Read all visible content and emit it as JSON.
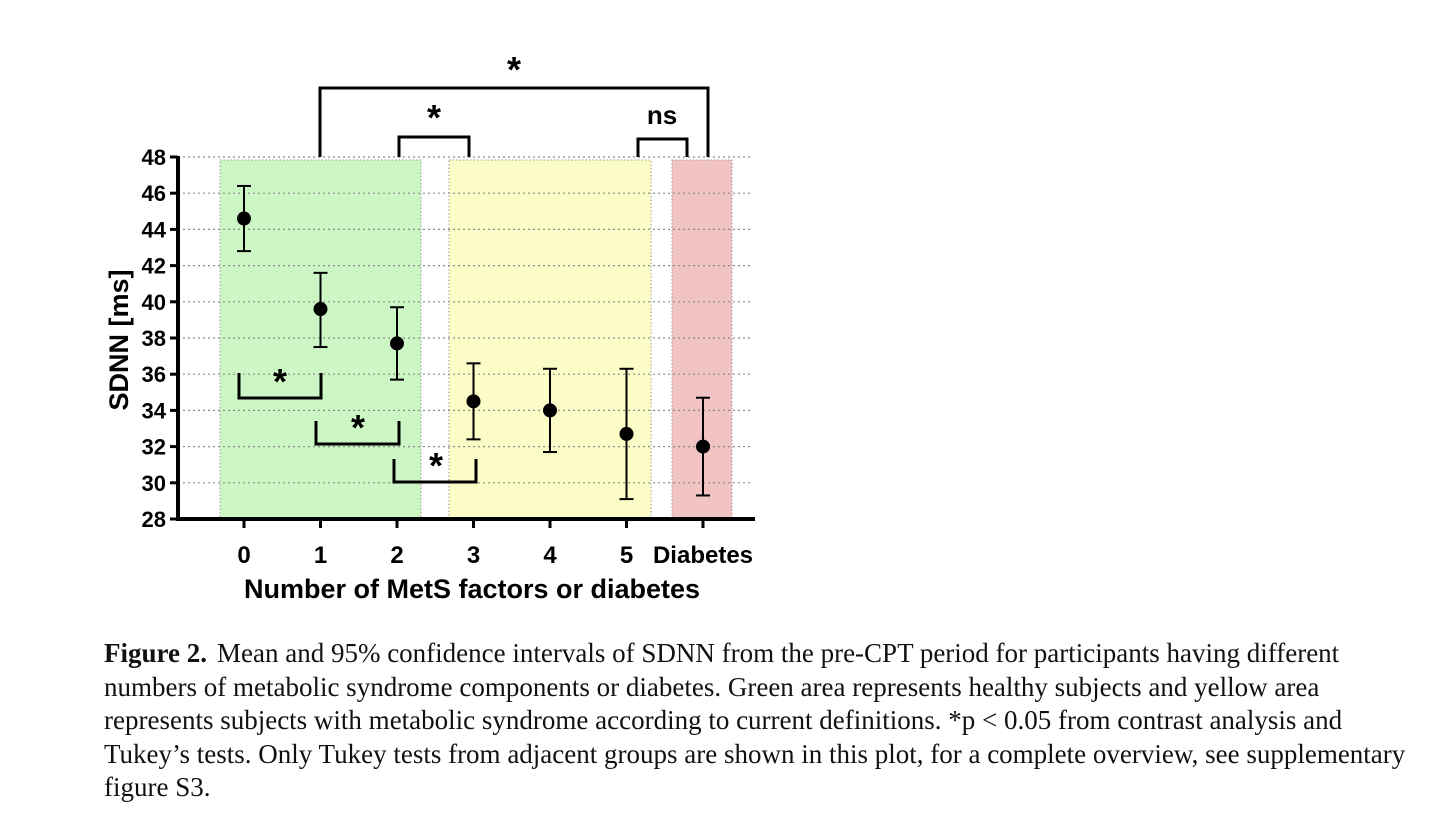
{
  "chart_data": {
    "type": "scatter",
    "categories": [
      "0",
      "1",
      "2",
      "3",
      "4",
      "5",
      "Diabetes"
    ],
    "series": [
      {
        "values": [
          44.6,
          39.6,
          37.7,
          34.5,
          34.0,
          32.7,
          32.0
        ],
        "ci_lower": [
          42.8,
          37.5,
          35.7,
          32.4,
          31.7,
          29.1,
          29.3
        ],
        "ci_upper": [
          46.4,
          41.6,
          39.7,
          36.6,
          36.3,
          36.3,
          34.7
        ]
      }
    ],
    "xlabel": "Number of MetS factors or diabetes",
    "ylabel": "SDNN [ms]",
    "ylim": [
      28,
      48
    ],
    "yticks": [
      "28",
      "30",
      "32",
      "34",
      "36",
      "38",
      "40",
      "42",
      "44",
      "46",
      "48"
    ],
    "grid": "horizontal dotted",
    "shaded_regions": [
      {
        "from": "0",
        "to": "2",
        "color": "#ccf7c5"
      },
      {
        "from": "3",
        "to": "5",
        "color": "#fcfcc7"
      },
      {
        "from": "Diabetes",
        "to": "Diabetes",
        "color": "#f2c3c3"
      }
    ],
    "annotations": {
      "top_outer": "*",
      "top_middle": "*",
      "top_right": "ns",
      "pair_0_1": "*",
      "pair_1_2": "*",
      "pair_2_3": "*"
    }
  },
  "caption": {
    "label": "Figure 2.",
    "text": "Mean and 95% confidence intervals of SDNN from the pre-CPT period for participants having different numbers of metabolic syndrome components or diabetes. Green area represents healthy subjects and yellow area represents subjects with metabolic syndrome according to current definitions. *p < 0.05 from contrast analysis and Tukey’s tests. Only Tukey tests from adjacent groups are shown in this plot, for a complete overview, see supplementary figure S3."
  }
}
